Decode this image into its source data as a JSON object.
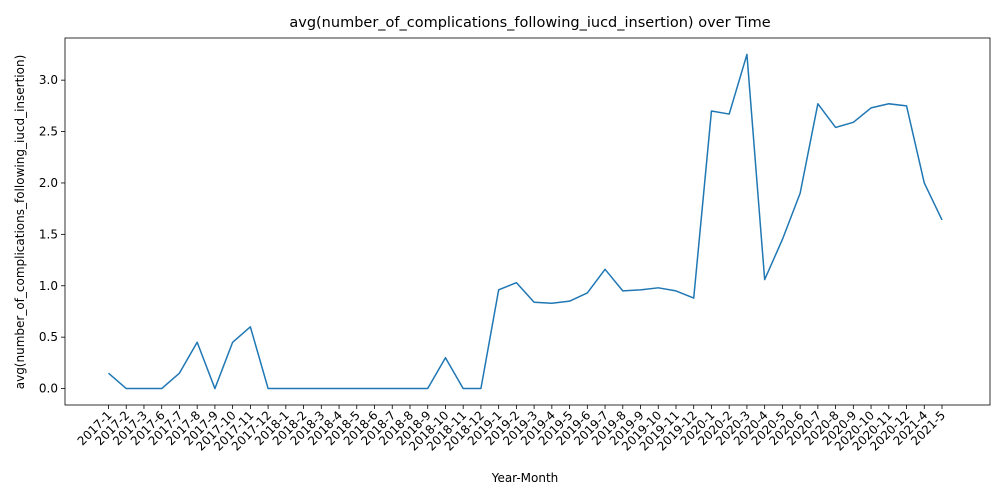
{
  "chart_data": {
    "type": "line",
    "title": "avg(number_of_complications_following_iucd_insertion) over Time",
    "xlabel": "Year-Month",
    "ylabel": "avg(number_of_complications_following_iucd_insertion)",
    "ylim": [
      -0.16,
      3.41
    ],
    "yticks": [
      "0.0",
      "0.5",
      "1.0",
      "1.5",
      "2.0",
      "2.5",
      "3.0"
    ],
    "grid": false,
    "categories": [
      "2017-1",
      "2017-2",
      "2017-3",
      "2017-6",
      "2017-7",
      "2017-8",
      "2017-9",
      "2017-10",
      "2017-11",
      "2017-12",
      "2018-1",
      "2018-2",
      "2018-3",
      "2018-4",
      "2018-5",
      "2018-6",
      "2018-7",
      "2018-8",
      "2018-9",
      "2018-10",
      "2018-11",
      "2018-12",
      "2019-1",
      "2019-2",
      "2019-3",
      "2019-4",
      "2019-5",
      "2019-6",
      "2019-7",
      "2019-8",
      "2019-9",
      "2019-10",
      "2019-11",
      "2019-12",
      "2020-1",
      "2020-2",
      "2020-3",
      "2020-4",
      "2020-5",
      "2020-6",
      "2020-7",
      "2020-8",
      "2020-9",
      "2020-10",
      "2020-11",
      "2020-12",
      "2021-4",
      "2021-5"
    ],
    "series": [
      {
        "color": "#1f77b4",
        "values": [
          0.15,
          0.0,
          0.0,
          0.0,
          0.15,
          0.45,
          0.0,
          0.45,
          0.6,
          0.0,
          0.0,
          0.0,
          0.0,
          0.0,
          0.0,
          0.0,
          0.0,
          0.0,
          0.0,
          0.3,
          0.0,
          0.0,
          0.96,
          1.03,
          0.84,
          0.83,
          0.85,
          0.93,
          1.16,
          0.95,
          0.96,
          0.98,
          0.95,
          0.88,
          2.7,
          2.67,
          3.25,
          1.06,
          1.45,
          1.9,
          2.77,
          2.54,
          2.59,
          2.73,
          2.77,
          2.75,
          2.0,
          1.64
        ]
      }
    ]
  }
}
